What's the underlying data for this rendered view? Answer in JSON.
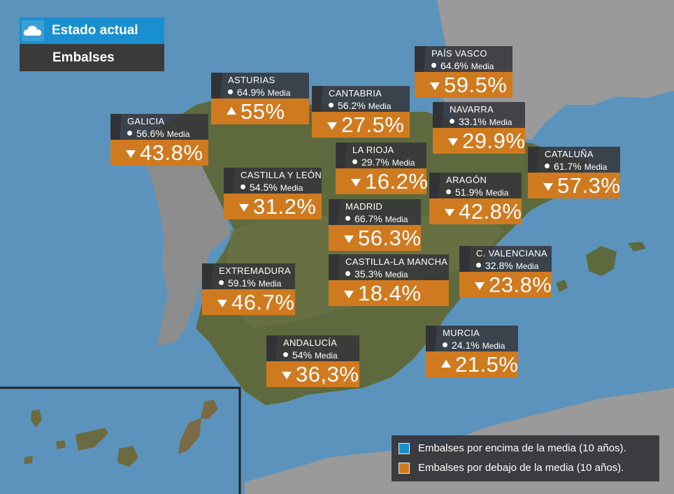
{
  "header": {
    "title": "Estado actual",
    "subtitle": "Embalses",
    "icon": "cloud-icon"
  },
  "colors": {
    "above": "#1a8fd0",
    "below": "#d07a1f",
    "sea": "#5c93bd",
    "land": "#5e6a3e"
  },
  "legend": {
    "above": "Embalses por encima de la media (10 años).",
    "below": "Embalses por debajo de la media (10 años)."
  },
  "regions": [
    {
      "id": "pais-vasco",
      "name": "PAÍS VASCO",
      "average": "64.6%",
      "media": "Media",
      "value": "59.5%",
      "trend": "down"
    },
    {
      "id": "asturias",
      "name": "ASTURIAS",
      "average": "64.9%",
      "media": "Media",
      "value": "55%",
      "trend": "up"
    },
    {
      "id": "cantabria",
      "name": "CANTABRIA",
      "average": "56.2%",
      "media": "Media",
      "value": "27.5%",
      "trend": "down"
    },
    {
      "id": "navarra",
      "name": "NAVARRA",
      "average": "33.1%",
      "media": "Media",
      "value": "29.9%",
      "trend": "down"
    },
    {
      "id": "galicia",
      "name": "GALICIA",
      "average": "56.6%",
      "media": "Media",
      "value": "43.8%",
      "trend": "down"
    },
    {
      "id": "cataluna",
      "name": "CATALUÑA",
      "average": "61.7%",
      "media": "Media",
      "value": "57.3%",
      "trend": "down"
    },
    {
      "id": "la-rioja",
      "name": "LA RIOJA",
      "average": "29.7%",
      "media": "Media",
      "value": "16.2%",
      "trend": "down"
    },
    {
      "id": "castilla-leon",
      "name": "CASTILLA Y LEÓN",
      "average": "54.5%",
      "media": "Media",
      "value": "31.2%",
      "trend": "down"
    },
    {
      "id": "aragon",
      "name": "ARAGÓN",
      "average": "51.9%",
      "media": "Media",
      "value": "42.8%",
      "trend": "down"
    },
    {
      "id": "madrid",
      "name": "MADRID",
      "average": "66.7%",
      "media": "Media",
      "value": "56.3%",
      "trend": "down"
    },
    {
      "id": "c-valenciana",
      "name": "C. VALENCIANA",
      "average": "32.8%",
      "media": "Media",
      "value": "23.8%",
      "trend": "down"
    },
    {
      "id": "castilla-la-mancha",
      "name": "CASTILLA-LA MANCHA",
      "average": "35.3%",
      "media": "Media",
      "value": "18.4%",
      "trend": "down"
    },
    {
      "id": "extremadura",
      "name": "EXTREMADURA",
      "average": "59.1%",
      "media": "Media",
      "value": "46.7%",
      "trend": "down"
    },
    {
      "id": "murcia",
      "name": "MURCIA",
      "average": "24.1%",
      "media": "Media",
      "value": "21.5%",
      "trend": "up"
    },
    {
      "id": "andalucia",
      "name": "ANDALUCÍA",
      "average": "54%",
      "media": "Media",
      "value": "36,3%",
      "trend": "down"
    }
  ]
}
